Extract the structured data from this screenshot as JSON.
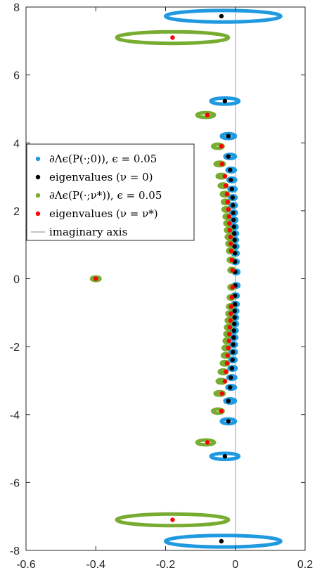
{
  "chart_data": {
    "type": "scatter",
    "xlim": [
      -0.6,
      0.2
    ],
    "ylim": [
      -8,
      8
    ],
    "x_ticks": [
      "-0.6",
      "-0.4",
      "-0.2",
      "0",
      "0.2"
    ],
    "y_ticks": [
      "-8",
      "-6",
      "-4",
      "-2",
      "0",
      "2",
      "4",
      "6",
      "8"
    ],
    "grid": false,
    "legend_position": "middle-left",
    "legend": [
      {
        "label": "∂Λϵ(P(·;0)), ϵ = 0.05",
        "color": "#1f9ae0",
        "kind": "dot"
      },
      {
        "label": "eigenvalues (ν = 0)",
        "color": "#000000",
        "kind": "dot"
      },
      {
        "label": "∂Λϵ(P(·;ν*)), ϵ = 0.05",
        "color": "#77ac30",
        "kind": "dot"
      },
      {
        "label": "eigenvalues (ν = ν*)",
        "color": "#ff0000",
        "kind": "dot"
      },
      {
        "label": "imaginary axis",
        "color": "#a0a0a0",
        "kind": "line"
      }
    ],
    "imaginary_axis_x": 0,
    "series": [
      {
        "name": "eigenvalues (ν = 0)",
        "color": "#000000",
        "points": [
          [
            -0.04,
            7.73
          ],
          [
            -0.03,
            5.23
          ],
          [
            -0.02,
            4.2
          ],
          [
            -0.02,
            3.6
          ],
          [
            -0.015,
            3.2
          ],
          [
            -0.013,
            2.91
          ],
          [
            -0.01,
            2.64
          ],
          [
            -0.008,
            2.39
          ],
          [
            -0.007,
            2.16
          ],
          [
            -0.006,
            1.94
          ],
          [
            -0.005,
            1.73
          ],
          [
            -0.004,
            1.53
          ],
          [
            -0.003,
            1.33
          ],
          [
            -0.002,
            1.14
          ],
          [
            -0.002,
            0.95
          ],
          [
            -0.001,
            0.75
          ],
          [
            -0.001,
            0.5
          ],
          [
            0.0,
            0.2
          ],
          [
            -0.04,
            -7.73
          ],
          [
            -0.03,
            -5.23
          ],
          [
            -0.02,
            -4.2
          ],
          [
            -0.02,
            -3.6
          ],
          [
            -0.015,
            -3.2
          ],
          [
            -0.013,
            -2.91
          ],
          [
            -0.01,
            -2.64
          ],
          [
            -0.008,
            -2.39
          ],
          [
            -0.007,
            -2.16
          ],
          [
            -0.006,
            -1.94
          ],
          [
            -0.005,
            -1.73
          ],
          [
            -0.004,
            -1.53
          ],
          [
            -0.003,
            -1.33
          ],
          [
            -0.002,
            -1.14
          ],
          [
            -0.002,
            -0.95
          ],
          [
            -0.001,
            -0.75
          ],
          [
            -0.001,
            -0.5
          ],
          [
            0.0,
            -0.2
          ]
        ]
      },
      {
        "name": "eigenvalues (ν = ν*)",
        "color": "#ff0000",
        "points": [
          [
            -0.4,
            0.0
          ],
          [
            -0.18,
            7.1
          ],
          [
            -0.08,
            4.82
          ],
          [
            -0.04,
            3.9
          ],
          [
            -0.038,
            3.38
          ],
          [
            -0.03,
            3.02
          ],
          [
            -0.027,
            2.74
          ],
          [
            -0.024,
            2.49
          ],
          [
            -0.022,
            2.26
          ],
          [
            -0.02,
            2.04
          ],
          [
            -0.018,
            1.83
          ],
          [
            -0.017,
            1.63
          ],
          [
            -0.016,
            1.43
          ],
          [
            -0.014,
            1.23
          ],
          [
            -0.013,
            1.03
          ],
          [
            -0.012,
            0.82
          ],
          [
            -0.01,
            0.55
          ],
          [
            -0.008,
            0.25
          ],
          [
            -0.18,
            -7.1
          ],
          [
            -0.08,
            -4.82
          ],
          [
            -0.04,
            -3.9
          ],
          [
            -0.038,
            -3.38
          ],
          [
            -0.03,
            -3.02
          ],
          [
            -0.027,
            -2.74
          ],
          [
            -0.024,
            -2.49
          ],
          [
            -0.022,
            -2.26
          ],
          [
            -0.02,
            -2.04
          ],
          [
            -0.018,
            -1.83
          ],
          [
            -0.017,
            -1.63
          ],
          [
            -0.016,
            -1.43
          ],
          [
            -0.014,
            -1.23
          ],
          [
            -0.013,
            -1.03
          ],
          [
            -0.012,
            -0.82
          ],
          [
            -0.01,
            -0.55
          ],
          [
            -0.008,
            -0.25
          ]
        ]
      }
    ],
    "pseudospectrum_contours": [
      {
        "name": "∂Λϵ(P(·;0)), ϵ = 0.05",
        "color": "#1f9ae0",
        "ellipses": [
          [
            -0.035,
            7.73,
            0.165,
            0.17
          ],
          [
            -0.035,
            -7.73,
            0.165,
            0.17
          ],
          [
            -0.03,
            5.23,
            0.04,
            0.09
          ],
          [
            -0.03,
            -5.23,
            0.04,
            0.09
          ],
          [
            -0.02,
            4.2,
            0.02,
            0.07
          ],
          [
            -0.02,
            -4.2,
            0.02,
            0.07
          ],
          [
            -0.015,
            3.6,
            0.015,
            0.06
          ],
          [
            -0.015,
            -3.6,
            0.015,
            0.06
          ],
          [
            -0.012,
            3.2,
            0.012,
            0.05
          ],
          [
            -0.012,
            -3.2,
            0.012,
            0.05
          ],
          [
            -0.01,
            2.91,
            0.011,
            0.045
          ],
          [
            -0.01,
            -2.91,
            0.011,
            0.045
          ],
          [
            -0.008,
            2.64,
            0.01,
            0.04
          ],
          [
            -0.008,
            -2.64,
            0.01,
            0.04
          ],
          [
            -0.007,
            2.39,
            0.009,
            0.04
          ],
          [
            -0.007,
            -2.39,
            0.009,
            0.04
          ],
          [
            -0.006,
            2.16,
            0.009,
            0.04
          ],
          [
            -0.006,
            -2.16,
            0.009,
            0.04
          ],
          [
            -0.005,
            1.94,
            0.008,
            0.04
          ],
          [
            -0.005,
            -1.94,
            0.008,
            0.04
          ],
          [
            -0.004,
            1.73,
            0.008,
            0.04
          ],
          [
            -0.004,
            -1.73,
            0.008,
            0.04
          ],
          [
            -0.003,
            1.53,
            0.008,
            0.04
          ],
          [
            -0.003,
            -1.53,
            0.008,
            0.04
          ],
          [
            -0.002,
            1.33,
            0.008,
            0.04
          ],
          [
            -0.002,
            -1.33,
            0.008,
            0.04
          ],
          [
            -0.002,
            1.14,
            0.008,
            0.04
          ],
          [
            -0.002,
            -1.14,
            0.008,
            0.04
          ],
          [
            -0.001,
            0.95,
            0.008,
            0.04
          ],
          [
            -0.001,
            -0.95,
            0.008,
            0.04
          ],
          [
            0.0,
            0.75,
            0.008,
            0.04
          ],
          [
            0.0,
            -0.75,
            0.008,
            0.04
          ],
          [
            0.0,
            0.5,
            0.008,
            0.04
          ],
          [
            0.0,
            -0.5,
            0.008,
            0.04
          ],
          [
            0.002,
            0.2,
            0.008,
            0.04
          ],
          [
            0.002,
            -0.2,
            0.008,
            0.04
          ]
        ]
      },
      {
        "name": "∂Λϵ(P(·;ν*)), ϵ = 0.05",
        "color": "#77ac30",
        "ellipses": [
          [
            -0.4,
            0.0,
            0.012,
            0.04
          ],
          [
            -0.18,
            7.1,
            0.16,
            0.17
          ],
          [
            -0.18,
            -7.1,
            0.16,
            0.17
          ],
          [
            -0.085,
            4.82,
            0.025,
            0.07
          ],
          [
            -0.085,
            -4.82,
            0.025,
            0.07
          ],
          [
            -0.05,
            3.9,
            0.015,
            0.06
          ],
          [
            -0.05,
            -3.9,
            0.015,
            0.06
          ],
          [
            -0.045,
            3.38,
            0.013,
            0.05
          ],
          [
            -0.045,
            -3.38,
            0.013,
            0.05
          ],
          [
            -0.04,
            3.02,
            0.012,
            0.045
          ],
          [
            -0.04,
            -3.02,
            0.012,
            0.045
          ],
          [
            -0.035,
            2.74,
            0.011,
            0.04
          ],
          [
            -0.035,
            -2.74,
            0.011,
            0.04
          ],
          [
            -0.03,
            2.49,
            0.01,
            0.04
          ],
          [
            -0.03,
            -2.49,
            0.01,
            0.04
          ],
          [
            -0.028,
            2.26,
            0.009,
            0.04
          ],
          [
            -0.028,
            -2.26,
            0.009,
            0.04
          ],
          [
            -0.026,
            2.04,
            0.009,
            0.04
          ],
          [
            -0.026,
            -2.04,
            0.009,
            0.04
          ],
          [
            -0.024,
            1.83,
            0.008,
            0.04
          ],
          [
            -0.024,
            -1.83,
            0.008,
            0.04
          ],
          [
            -0.022,
            1.63,
            0.008,
            0.04
          ],
          [
            -0.022,
            -1.63,
            0.008,
            0.04
          ],
          [
            -0.02,
            1.43,
            0.008,
            0.04
          ],
          [
            -0.02,
            -1.43,
            0.008,
            0.04
          ],
          [
            -0.018,
            1.23,
            0.008,
            0.04
          ],
          [
            -0.018,
            -1.23,
            0.008,
            0.04
          ],
          [
            -0.016,
            1.03,
            0.008,
            0.04
          ],
          [
            -0.016,
            -1.03,
            0.008,
            0.04
          ],
          [
            -0.014,
            0.82,
            0.008,
            0.04
          ],
          [
            -0.014,
            -0.82,
            0.008,
            0.04
          ],
          [
            -0.012,
            0.55,
            0.008,
            0.04
          ],
          [
            -0.012,
            -0.55,
            0.008,
            0.04
          ],
          [
            -0.01,
            0.25,
            0.008,
            0.04
          ],
          [
            -0.01,
            -0.25,
            0.008,
            0.04
          ]
        ]
      }
    ]
  }
}
